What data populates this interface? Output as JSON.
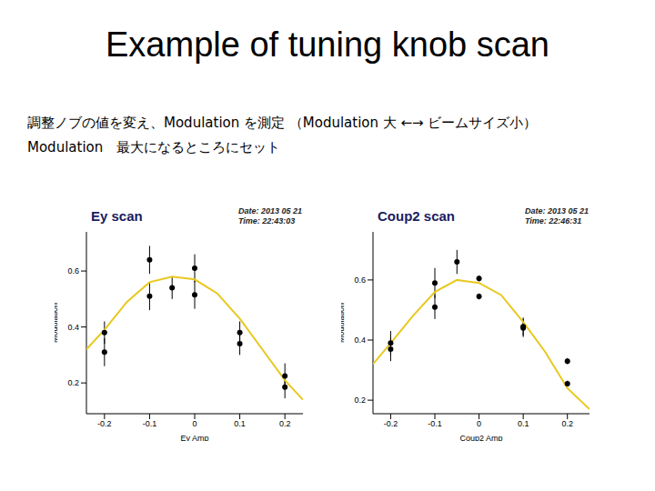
{
  "title": "Example of tuning knob scan",
  "text": [
    "調整ノブの値を変え、Modulation を測定 （Modulation 大 ←→ ビームサイズ小）",
    "Modulation　最大になるところにセット"
  ],
  "chart_data": [
    {
      "type": "scatter",
      "title": "Ey scan",
      "annotations": [
        "Date: 2013 05 21",
        "Time: 22:43:03"
      ],
      "x_label": "Ey Amp",
      "y_label": "Modulation",
      "xlim": [
        -0.24,
        0.24
      ],
      "ylim": [
        0.09,
        0.74
      ],
      "xticks": [
        -0.2,
        -0.1,
        0,
        0.1,
        0.2
      ],
      "yticks": [
        0.2,
        0.4,
        0.6
      ],
      "color": "#000000",
      "x": [
        -0.2,
        -0.2,
        -0.1,
        -0.1,
        -0.05,
        0,
        0,
        0.1,
        0.1,
        0.2,
        0.2
      ],
      "values": [
        0.38,
        0.31,
        0.64,
        0.51,
        0.54,
        0.61,
        0.515,
        0.38,
        0.34,
        0.225,
        0.185
      ],
      "errors": [
        0.04,
        0.05,
        0.05,
        0.05,
        0.04,
        0.05,
        0.05,
        0.04,
        0.04,
        0.045,
        0.04
      ],
      "fit": {
        "color": "#e8c81e",
        "x": [
          -0.24,
          -0.2,
          -0.15,
          -0.1,
          -0.05,
          0,
          0.05,
          0.1,
          0.15,
          0.2,
          0.24
        ],
        "values": [
          0.32,
          0.39,
          0.49,
          0.56,
          0.58,
          0.57,
          0.52,
          0.43,
          0.32,
          0.21,
          0.14
        ]
      }
    },
    {
      "type": "scatter",
      "title": "Coup2 scan",
      "annotations": [
        "Date: 2013 05 21",
        "Time: 22:46:31"
      ],
      "x_label": "Coup2 Amp",
      "y_label": "Modulation",
      "xlim": [
        -0.24,
        0.25
      ],
      "ylim": [
        0.155,
        0.76
      ],
      "xticks": [
        -0.2,
        -0.1,
        0,
        0.1,
        0.2
      ],
      "yticks": [
        0.2,
        0.4,
        0.6
      ],
      "color": "#000000",
      "x": [
        -0.2,
        -0.2,
        -0.1,
        -0.1,
        -0.05,
        0,
        0,
        0.1,
        0.1,
        0.2,
        0.2
      ],
      "values": [
        0.39,
        0.37,
        0.59,
        0.51,
        0.66,
        0.605,
        0.545,
        0.445,
        0.44,
        0.33,
        0.255
      ],
      "errors": [
        0.04,
        0.04,
        0.05,
        0.04,
        0.04,
        0.01,
        0.01,
        0.03,
        0.03,
        0.01,
        0.01
      ],
      "fit": {
        "color": "#e8c81e",
        "x": [
          -0.24,
          -0.2,
          -0.15,
          -0.1,
          -0.05,
          0,
          0.05,
          0.1,
          0.15,
          0.2,
          0.25
        ],
        "values": [
          0.32,
          0.39,
          0.48,
          0.56,
          0.6,
          0.59,
          0.55,
          0.46,
          0.36,
          0.24,
          0.17
        ]
      }
    }
  ]
}
